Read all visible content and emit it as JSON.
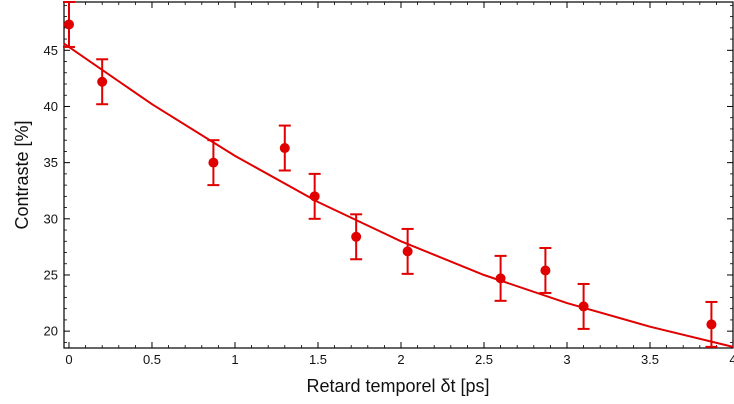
{
  "chart_data": {
    "type": "scatter",
    "title": "",
    "xlabel": "Retard temporel δt [ps]",
    "ylabel": "Contraste [%]",
    "xlim": [
      -0.03,
      4.0
    ],
    "ylim": [
      18.5,
      49.3
    ],
    "xticks": [
      0,
      0.5,
      1,
      1.5,
      2,
      2.5,
      3,
      3.5,
      4
    ],
    "xtick_labels": [
      "0",
      "0.5",
      "1",
      "1.5",
      "2",
      "2.5",
      "3",
      "3.5",
      "4"
    ],
    "yticks": [
      20,
      25,
      30,
      35,
      40,
      45
    ],
    "ytick_labels": [
      "20",
      "25",
      "30",
      "35",
      "40",
      "45"
    ],
    "grid": false,
    "legend": "none",
    "color": "#e00000",
    "series": [
      {
        "kind": "points_with_error_bars",
        "x": [
          0.0,
          0.2,
          0.87,
          1.3,
          1.48,
          1.73,
          2.04,
          2.6,
          2.87,
          3.1,
          3.87
        ],
        "y": [
          47.3,
          42.2,
          35.0,
          36.3,
          32.0,
          28.4,
          27.1,
          24.7,
          25.4,
          22.2,
          20.6
        ],
        "yerr": [
          2.0,
          2.0,
          2.0,
          2.0,
          2.0,
          2.0,
          2.0,
          2.0,
          2.0,
          2.0,
          2.0
        ]
      },
      {
        "kind": "fit_line",
        "x": [
          -0.03,
          0.5,
          1.0,
          1.5,
          2.0,
          2.5,
          3.0,
          3.5,
          4.0
        ],
        "y": [
          45.6,
          40.2,
          35.6,
          31.5,
          28.0,
          25.0,
          22.5,
          20.4,
          18.6
        ]
      }
    ]
  }
}
